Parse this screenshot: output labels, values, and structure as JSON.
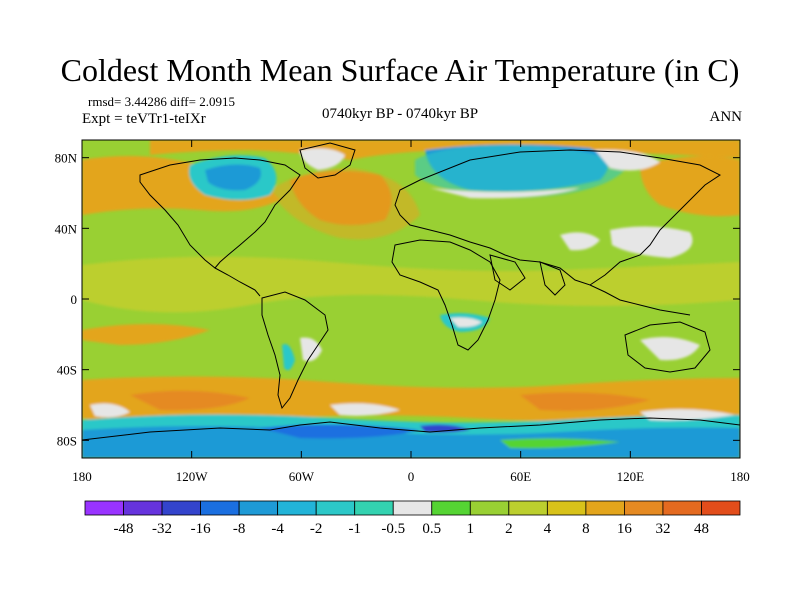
{
  "title": "Coldest Month Mean Surface Air Temperature (in C)",
  "stats": "rmsd= 3.44286  diff= 2.0915",
  "experiment": "Expt = teVTr1-teIXr",
  "period": "0740kyr BP - 0740kyr BP",
  "season": "ANN",
  "map": {
    "projection": "cylindrical equidistant",
    "lon_range": [
      -180,
      180
    ],
    "lat_range": [
      -90,
      90
    ],
    "x_ticks": [
      {
        "value": -180,
        "label": "180"
      },
      {
        "value": -120,
        "label": "120W"
      },
      {
        "value": -60,
        "label": "60W"
      },
      {
        "value": 0,
        "label": "0"
      },
      {
        "value": 60,
        "label": "60E"
      },
      {
        "value": 120,
        "label": "120E"
      },
      {
        "value": 180,
        "label": "180"
      }
    ],
    "y_ticks": [
      {
        "value": 80,
        "label": "80N"
      },
      {
        "value": 40,
        "label": "40N"
      },
      {
        "value": 0,
        "label": "0"
      },
      {
        "value": -40,
        "label": "40S"
      },
      {
        "value": -80,
        "label": "80S"
      }
    ]
  },
  "colorbar": {
    "colors": [
      "#9933ff",
      "#6633dd",
      "#3344cc",
      "#1b6fe0",
      "#1e9ad6",
      "#22b4d8",
      "#2cc8c8",
      "#33d2b0",
      "#e6e6e6",
      "#55d433",
      "#99d033",
      "#bccf2e",
      "#d8c21a",
      "#e3a51c",
      "#e58a22",
      "#e46a20",
      "#e24d1b"
    ],
    "labels": [
      "-48",
      "-32",
      "-16",
      "-8",
      "-4",
      "-2",
      "-1",
      "-0.5",
      "0.5",
      "1",
      "2",
      "4",
      "8",
      "16",
      "32",
      "48"
    ]
  },
  "regions": {
    "background": "#99d033",
    "warm_tropics": "#bccf2e",
    "warm": "#e3a51c",
    "hot": "#e58a22",
    "near_zero": "#e6e6e6",
    "cool": "#2cc8c8",
    "cold": "#1e9ad6",
    "colder": "#1b6fe0",
    "coldest": "#3344cc",
    "slight_warm": "#55d433"
  }
}
